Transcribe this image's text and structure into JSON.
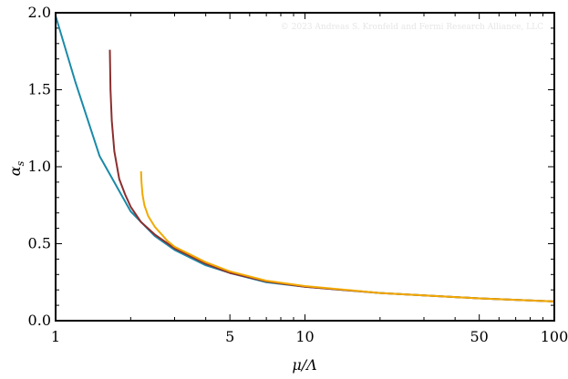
{
  "watermark": "© 2023 Andreas S. Kronfeld and Fermi Research Alliance, LLC",
  "chart_data": {
    "type": "line",
    "title": "",
    "xlabel": "μ/Λ",
    "ylabel": "α",
    "ylabel_sub": "s",
    "xscale": "log",
    "xlim": [
      1,
      100
    ],
    "ylim": [
      0,
      2.0
    ],
    "xticks": [
      1,
      5,
      10,
      50,
      100
    ],
    "xtick_labels": [
      "1",
      "5",
      "10",
      "50",
      "100"
    ],
    "yticks": [
      0,
      0.5,
      1.0,
      1.5,
      2.0
    ],
    "ytick_labels": [
      "0.0",
      "0.5",
      "1.0",
      "1.5",
      "2.0"
    ],
    "grid": false,
    "series": [
      {
        "color": "#1a8aa8",
        "x": [
          1,
          1.2,
          1.5,
          2,
          2.5,
          3,
          4,
          5,
          7,
          10,
          20,
          50,
          100
        ],
        "y": [
          1.98,
          1.55,
          1.07,
          0.71,
          0.55,
          0.46,
          0.36,
          0.31,
          0.25,
          0.22,
          0.18,
          0.145,
          0.125
        ]
      },
      {
        "color": "#8b2e2e",
        "x": [
          1.65,
          1.66,
          1.68,
          1.72,
          1.8,
          1.9,
          2.0,
          2.2,
          2.5,
          3,
          4,
          5,
          7,
          10,
          20,
          50,
          100
        ],
        "y": [
          1.76,
          1.5,
          1.3,
          1.1,
          0.92,
          0.82,
          0.74,
          0.64,
          0.56,
          0.47,
          0.37,
          0.31,
          0.255,
          0.22,
          0.18,
          0.145,
          0.125
        ]
      },
      {
        "color": "#f2a900",
        "x": [
          2.2,
          2.21,
          2.23,
          2.27,
          2.35,
          2.5,
          2.8,
          3,
          4,
          5,
          7,
          10,
          20,
          50,
          100
        ],
        "y": [
          0.97,
          0.9,
          0.82,
          0.75,
          0.68,
          0.61,
          0.52,
          0.48,
          0.38,
          0.32,
          0.26,
          0.225,
          0.18,
          0.145,
          0.125
        ]
      }
    ]
  }
}
